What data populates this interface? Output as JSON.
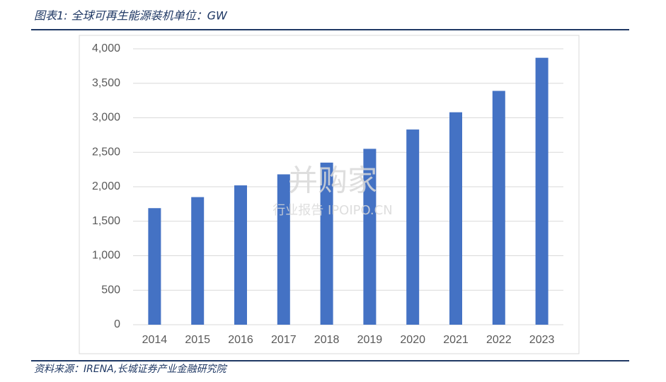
{
  "chart_data": {
    "type": "bar",
    "title": "图表1: 全球可再生能源装机单位：GW",
    "source": "资料来源：IRENA,长城证券产业金融研究院",
    "watermark": [
      "并购家",
      "行业报告 IPOIPO.CN"
    ],
    "categories": [
      "2014",
      "2015",
      "2016",
      "2017",
      "2018",
      "2019",
      "2020",
      "2021",
      "2022",
      "2023"
    ],
    "values": [
      1690,
      1850,
      2020,
      2180,
      2350,
      2550,
      2830,
      3080,
      3390,
      3870
    ],
    "color": "#4472c4",
    "ylim": [
      0,
      4000
    ],
    "yticks": [
      0,
      500,
      {
        "value": 1000,
        "label": "1,000"
      },
      {
        "value": 1500,
        "label": "1,500"
      },
      {
        "value": 2000,
        "label": "2,000"
      },
      {
        "value": 2500,
        "label": "2,500"
      },
      {
        "value": 3000,
        "label": "3,000"
      },
      {
        "value": 3500,
        "label": "3,500"
      },
      {
        "value": 4000,
        "label": "4,000"
      }
    ],
    "grid": true
  }
}
